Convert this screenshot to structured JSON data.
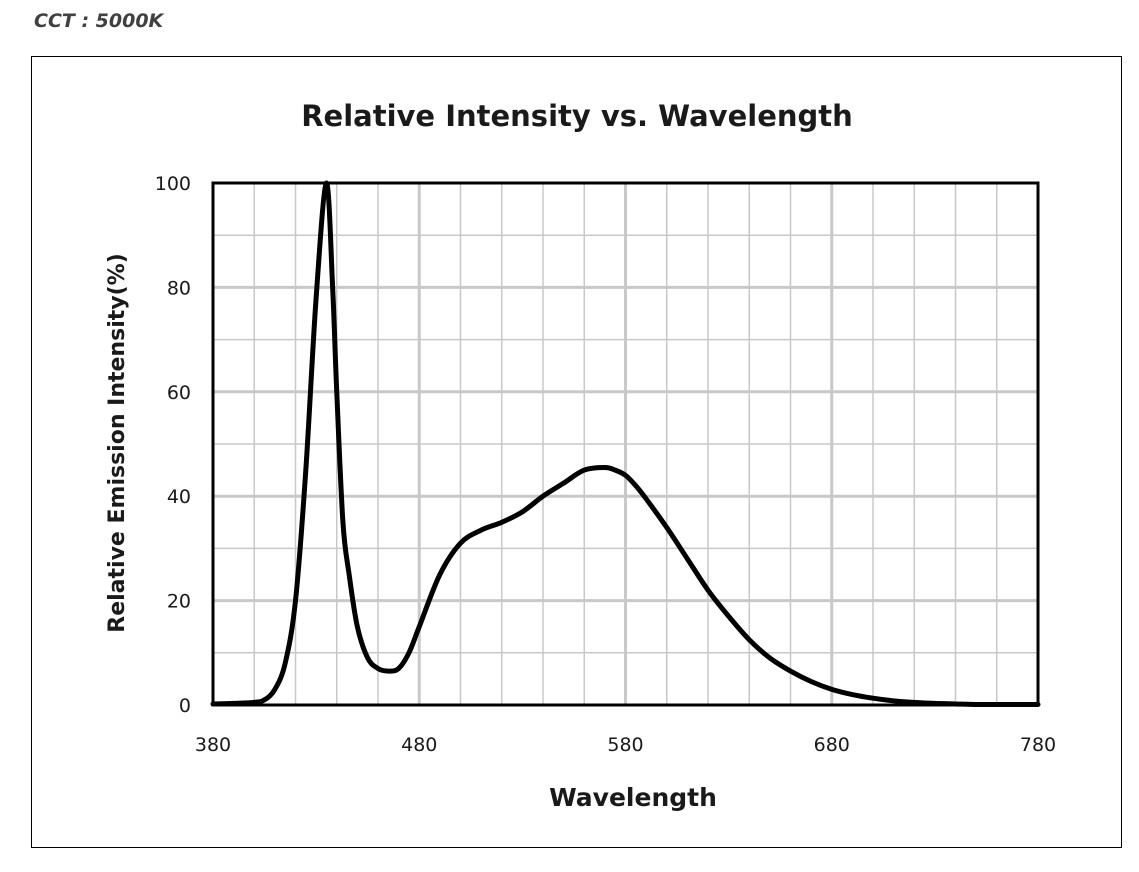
{
  "header": {
    "cct_label": "CCT : 5000K"
  },
  "chart_data": {
    "type": "line",
    "title": "Relative Intensity vs. Wavelength",
    "xlabel": "Wavelength",
    "ylabel": "Relative Emission Intensity(%)",
    "xlim": [
      380,
      780
    ],
    "ylim": [
      0,
      100
    ],
    "x_ticks": [
      380,
      480,
      580,
      680,
      780
    ],
    "y_ticks": [
      0,
      20,
      40,
      60,
      80,
      100
    ],
    "x_minor_step": 20,
    "y_minor_step": 10,
    "grid": true,
    "line_color": "#000000",
    "series": [
      {
        "x": [
          380,
          390,
          400,
          405,
          410,
          415,
          420,
          425,
          430,
          435,
          438,
          440,
          443,
          446,
          450,
          455,
          460,
          465,
          470,
          475,
          480,
          490,
          500,
          510,
          520,
          530,
          540,
          550,
          560,
          570,
          575,
          580,
          585,
          590,
          600,
          610,
          620,
          630,
          640,
          650,
          660,
          670,
          680,
          690,
          700,
          710,
          720,
          730,
          740,
          750,
          760,
          770,
          780
        ],
        "y": [
          0.2,
          0.3,
          0.5,
          1.0,
          3.0,
          8.0,
          20.0,
          45.0,
          78.0,
          100.0,
          80.0,
          60.0,
          35.0,
          25.0,
          15.0,
          9.0,
          7.0,
          6.5,
          7.0,
          10.0,
          15.0,
          25.0,
          31.0,
          33.5,
          35.0,
          37.0,
          40.0,
          42.5,
          45.0,
          45.5,
          45.0,
          44.0,
          42.0,
          39.5,
          34.0,
          28.0,
          22.0,
          17.0,
          12.5,
          9.0,
          6.5,
          4.5,
          3.0,
          2.0,
          1.3,
          0.8,
          0.5,
          0.3,
          0.2,
          0.1,
          0.1,
          0.1,
          0.1
        ]
      }
    ]
  }
}
